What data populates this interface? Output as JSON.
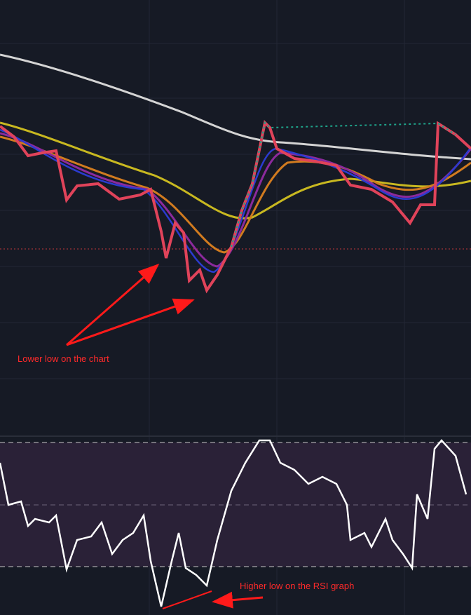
{
  "annotations": {
    "price_note": "Lower low on the chart",
    "rsi_note": "Higher low on the RSI graph"
  }
}
